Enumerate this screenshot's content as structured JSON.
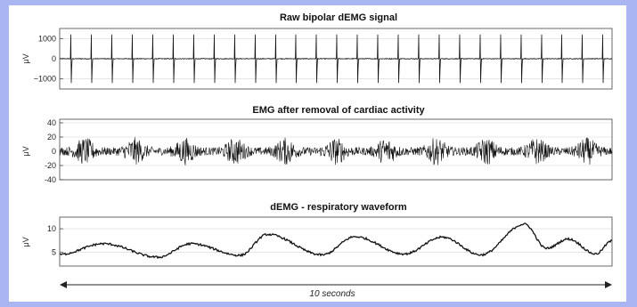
{
  "colors": {
    "background": "#a9b6f2",
    "panel": "#ffffff",
    "trace": "#111111",
    "grid": "#d6d6d6"
  },
  "chart_data": [
    {
      "type": "line",
      "title": "Raw bipolar dEMG signal",
      "ylabel": "μV",
      "ylim": [
        -1500,
        1500
      ],
      "yticks": [
        1000,
        0,
        -1000
      ],
      "yticklabels": [
        "1000",
        "0",
        "−1000"
      ],
      "grid": true,
      "series": [
        {
          "values_description": "ECG-dominated signal: sharp spikes of about ±1200 μV",
          "spike_count": 27,
          "spike_amplitude": 1200,
          "baseline_noise": 35
        }
      ]
    },
    {
      "type": "line",
      "title": "EMG after removal of cardiac activity",
      "ylabel": "μV",
      "ylim": [
        -40,
        45
      ],
      "yticks": [
        40,
        20,
        0,
        -20,
        -40
      ],
      "yticklabels": [
        "40",
        "20",
        "0",
        "-20",
        "-40"
      ],
      "grid": true,
      "series": [
        {
          "noise_amplitude": 10,
          "burst_count": 11,
          "burst_amplitude": 40
        }
      ]
    },
    {
      "type": "line",
      "title": "dEMG - respiratory waveform",
      "ylabel": "μV",
      "ylim": [
        2,
        12.5
      ],
      "yticks": [
        10,
        5
      ],
      "yticklabels": [
        "10",
        "5"
      ],
      "grid": true,
      "series": [
        {
          "x": [
            0,
            0.8,
            1.8,
            2.4,
            3.3,
            3.8,
            4.8,
            5.4,
            6.3,
            7.0,
            7.7,
            8.5,
            8.9,
            9.3,
            9.8,
            10.1
          ],
          "y": [
            4.5,
            6.8,
            3.9,
            6.8,
            4.3,
            8.8,
            4.4,
            8.3,
            4.6,
            8.2,
            4.4,
            11.0,
            5.8,
            7.8,
            4.6,
            7.4
          ]
        }
      ]
    }
  ],
  "time_scale": {
    "label": "10 seconds"
  }
}
